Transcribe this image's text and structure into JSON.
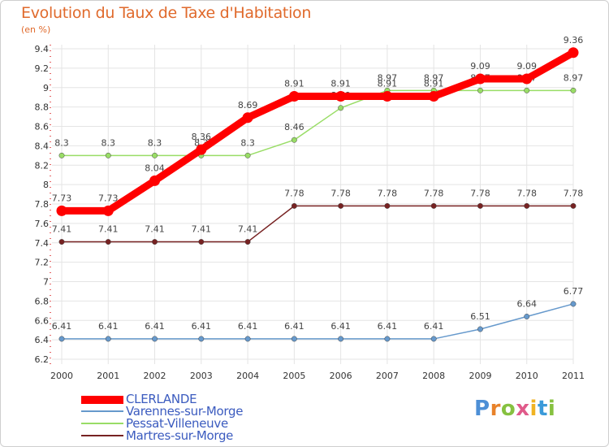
{
  "header": {
    "title": "Evolution du Taux de Taxe d'Habitation",
    "unit": "(en %)"
  },
  "brand": {
    "letters": [
      "P",
      "r",
      "o",
      "x",
      "i",
      "t",
      "i"
    ],
    "colors": [
      "#4d8fd6",
      "#e8822a",
      "#86c140",
      "#e05a8a",
      "#f0b323",
      "#3a9ad9",
      "#86c140"
    ]
  },
  "chart_data": {
    "type": "line",
    "x": [
      "2000",
      "2001",
      "2002",
      "2003",
      "2004",
      "2005",
      "2006",
      "2007",
      "2008",
      "2009",
      "2010",
      "2011"
    ],
    "ylim": [
      6.2,
      9.4
    ],
    "yticks": [
      "6.2",
      "6.4",
      "6.6",
      "6.8",
      "7",
      "7.2",
      "7.4",
      "7.6",
      "7.8",
      "8",
      "8.2",
      "8.4",
      "8.6",
      "8.8",
      "9",
      "9.2",
      "9.4"
    ],
    "grid": true,
    "legend_position": "bottom-left",
    "series": [
      {
        "name": "CLERLANDE",
        "color": "#ff0000",
        "values": [
          7.73,
          7.73,
          8.04,
          8.36,
          8.69,
          8.91,
          8.91,
          8.91,
          8.91,
          9.09,
          9.09,
          9.36
        ],
        "labels": [
          "7.73",
          "7.73",
          "8.04",
          "8.36",
          "8.69",
          "8.91",
          "8.91",
          "8.91",
          "8.91",
          "9.09",
          "9.09",
          "9.36"
        ]
      },
      {
        "name": "Varennes-sur-Morge",
        "color": "#6699cc",
        "values": [
          6.41,
          6.41,
          6.41,
          6.41,
          6.41,
          6.41,
          6.41,
          6.41,
          6.41,
          6.51,
          6.64,
          6.77
        ],
        "labels": [
          "6.41",
          "6.41",
          "6.41",
          "6.41",
          "6.41",
          "6.41",
          "6.41",
          "6.41",
          "6.41",
          "6.51",
          "6.64",
          "6.77"
        ]
      },
      {
        "name": "Pessat-Villeneuve",
        "color": "#99dd66",
        "values": [
          8.3,
          8.3,
          8.3,
          8.3,
          8.3,
          8.46,
          8.79,
          8.97,
          8.97,
          8.97,
          8.97,
          8.97
        ],
        "labels": [
          "8.3",
          "8.3",
          "8.3",
          "8.3",
          "8.3",
          "8.46",
          "8.79",
          "8.97",
          "8.97",
          "8.97",
          "8.97",
          "8.97"
        ]
      },
      {
        "name": "Martres-sur-Morge",
        "color": "#772222",
        "values": [
          7.41,
          7.41,
          7.41,
          7.41,
          7.41,
          7.78,
          7.78,
          7.78,
          7.78,
          7.78,
          7.78,
          7.78
        ],
        "labels": [
          "7.41",
          "7.41",
          "7.41",
          "7.41",
          "7.41",
          "7.78",
          "7.78",
          "7.78",
          "7.78",
          "7.78",
          "7.78",
          "7.78"
        ]
      }
    ]
  }
}
